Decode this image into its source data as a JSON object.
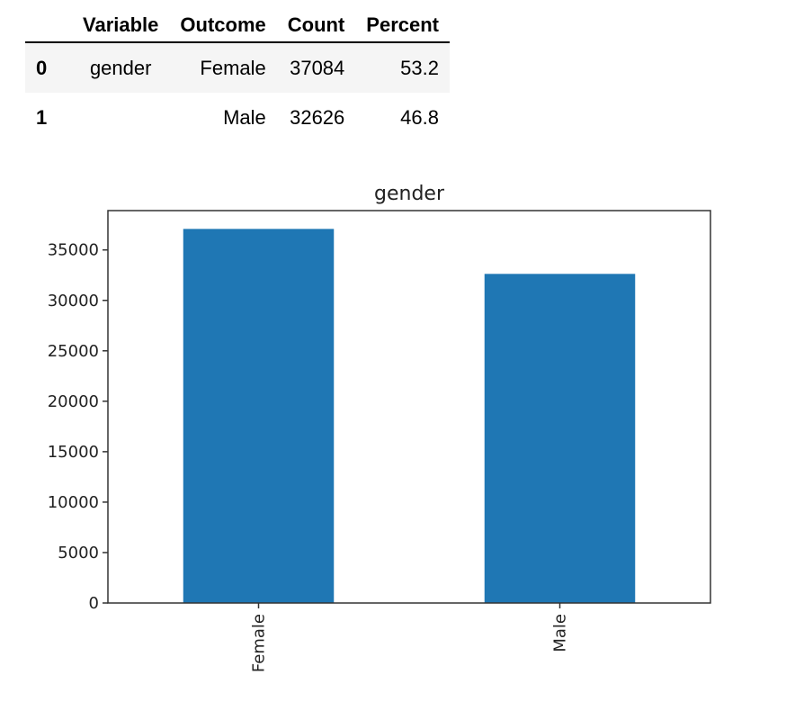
{
  "table": {
    "columns": [
      "",
      "Variable",
      "Outcome",
      "Count",
      "Percent"
    ],
    "rows": [
      {
        "index": "0",
        "variable": "gender",
        "outcome": "Female",
        "count": "37084",
        "percent": "53.2"
      },
      {
        "index": "1",
        "variable": "",
        "outcome": "Male",
        "count": "32626",
        "percent": "46.8"
      }
    ]
  },
  "colors": {
    "bar": "#1f77b4",
    "axis": "#333333"
  },
  "chart_data": {
    "type": "bar",
    "title": "gender",
    "categories": [
      "Female",
      "Male"
    ],
    "values": [
      37084,
      32626
    ],
    "xlabel": "",
    "ylabel": "",
    "ylim": [
      0,
      38900
    ],
    "yticks": [
      0,
      5000,
      10000,
      15000,
      20000,
      25000,
      30000,
      35000
    ],
    "grid": false,
    "legend": "none"
  }
}
